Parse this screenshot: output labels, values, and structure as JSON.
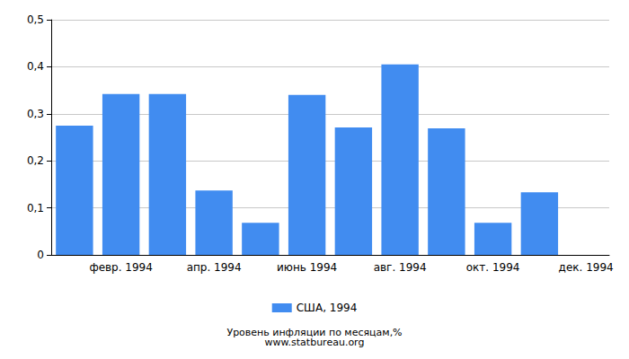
{
  "chart_data": {
    "type": "bar",
    "title": "Уровень инфляции по месяцам,%",
    "subtitle": "www.statbureau.org",
    "categories": [
      null,
      "февр. 1994",
      null,
      "апр. 1994",
      null,
      "июнь 1994",
      null,
      "авг. 1994",
      null,
      "окт. 1994",
      null,
      "дек. 1994"
    ],
    "series": [
      {
        "name": "США, 1994",
        "color": "#418cf0",
        "values": [
          0.275,
          0.342,
          0.342,
          0.137,
          0.068,
          0.34,
          0.271,
          0.405,
          0.269,
          0.068,
          0.133,
          0
        ]
      }
    ],
    "ylim": [
      0,
      0.5
    ],
    "yticks": [
      0,
      {
        "value": 0.1,
        "label": "0,1"
      },
      {
        "value": 0.2,
        "label": "0,2"
      },
      {
        "value": 0.3,
        "label": "0,3"
      },
      {
        "value": 0.4,
        "label": "0,4"
      },
      {
        "value": 0.5,
        "label": "0,5"
      }
    ],
    "grid": true,
    "legend": "bottom"
  }
}
